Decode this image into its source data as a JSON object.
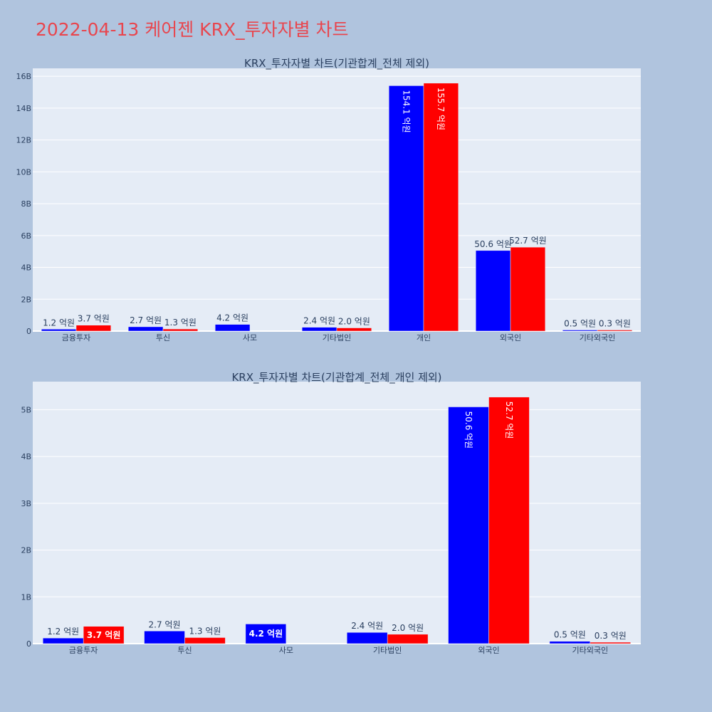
{
  "page": {
    "title": "2022-04-13 케어젠 KRX_투자자별 차트"
  },
  "colors": {
    "background": "#B0C4DE",
    "plot_bg": "#E5ECF6",
    "buy": "#0000FF",
    "sell": "#FF0000",
    "title": "#E8464E"
  },
  "chart_data": [
    {
      "type": "bar",
      "title": "KRX_투자자별 차트(기관합계_전체 제외)",
      "categories": [
        "금융투자",
        "투신",
        "사모",
        "기타법인",
        "개인",
        "외국인",
        "기타외국인"
      ],
      "series": [
        {
          "color": "#0000FF",
          "values": [
            120000000,
            270000000,
            420000000,
            240000000,
            15410000000,
            5060000000,
            50000000
          ],
          "labels": [
            "1.2 억원",
            "2.7 억원",
            "4.2 억원",
            "2.4 억원",
            "154.1 억원",
            "50.6 억원",
            "0.5 억원"
          ]
        },
        {
          "color": "#FF0000",
          "values": [
            370000000,
            130000000,
            null,
            200000000,
            15570000000,
            5270000000,
            30000000
          ],
          "labels": [
            "3.7 억원",
            "1.3 억원",
            "",
            "2.0 억원",
            "155.7 억원",
            "52.7 억원",
            "0.3 억원"
          ]
        }
      ],
      "ylim": [
        0,
        16500000000
      ],
      "yticks": [
        0,
        2000000000,
        4000000000,
        6000000000,
        8000000000,
        10000000000,
        12000000000,
        14000000000,
        16000000000
      ],
      "ytick_labels": [
        "0",
        "2B",
        "4B",
        "6B",
        "8B",
        "10B",
        "12B",
        "14B",
        "16B"
      ],
      "grid": true
    },
    {
      "type": "bar",
      "title": "KRX_투자자별 차트(기관합계_전체_개인 제외)",
      "categories": [
        "금융투자",
        "투신",
        "사모",
        "기타법인",
        "외국인",
        "기타외국인"
      ],
      "series": [
        {
          "color": "#0000FF",
          "values": [
            120000000,
            270000000,
            420000000,
            240000000,
            5060000000,
            50000000
          ],
          "labels": [
            "1.2 억원",
            "2.7 억원",
            "4.2 억원",
            "2.4 억원",
            "50.6 억원",
            "0.5 억원"
          ]
        },
        {
          "color": "#FF0000",
          "values": [
            370000000,
            130000000,
            null,
            200000000,
            5270000000,
            30000000
          ],
          "labels": [
            "3.7 억원",
            "1.3 억원",
            "",
            "2.0 억원",
            "52.7 억원",
            "0.3 억원"
          ]
        }
      ],
      "ylim": [
        0,
        5600000000
      ],
      "yticks": [
        0,
        1000000000,
        2000000000,
        3000000000,
        4000000000,
        5000000000
      ],
      "ytick_labels": [
        "0",
        "1B",
        "2B",
        "3B",
        "4B",
        "5B"
      ],
      "grid": true
    }
  ]
}
